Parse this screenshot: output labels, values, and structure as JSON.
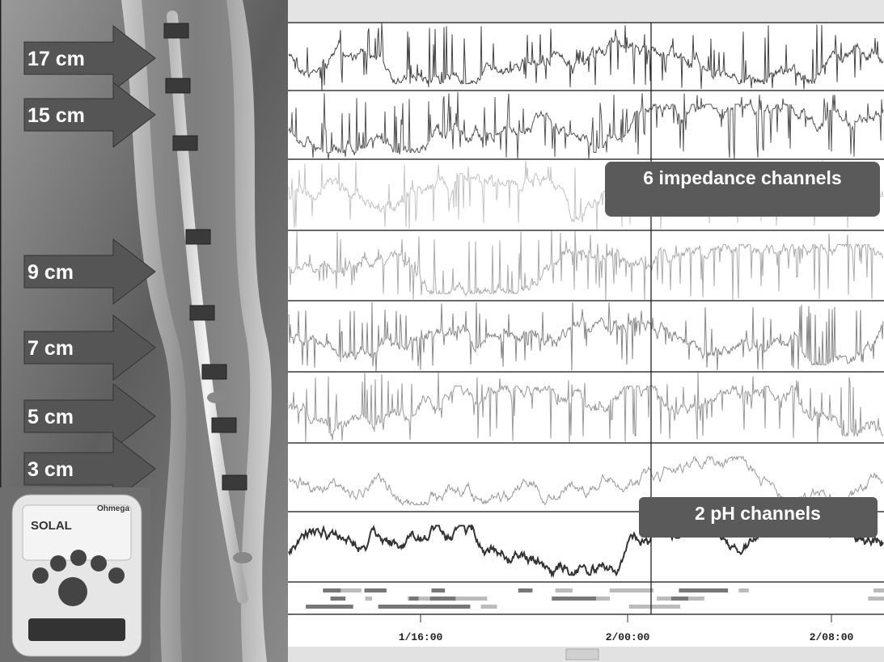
{
  "electrode_labels": [
    "17 cm",
    "15 cm",
    "9 cm",
    "7 cm",
    "5 cm",
    "3 cm"
  ],
  "callouts": {
    "impedance": "6 impedance channels",
    "ph": "2 pH channels"
  },
  "time_axis": [
    "1/16:00",
    "2/00:00",
    "2/08:00"
  ],
  "device": {
    "brand": "Ohmega",
    "model": "SOLAL"
  }
}
